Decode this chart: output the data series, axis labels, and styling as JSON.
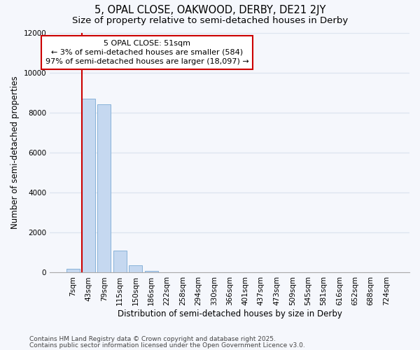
{
  "title_line1": "5, OPAL CLOSE, OAKWOOD, DERBY, DE21 2JY",
  "title_line2": "Size of property relative to semi-detached houses in Derby",
  "xlabel": "Distribution of semi-detached houses by size in Derby",
  "ylabel": "Number of semi-detached properties",
  "categories": [
    "7sqm",
    "43sqm",
    "79sqm",
    "115sqm",
    "150sqm",
    "186sqm",
    "222sqm",
    "258sqm",
    "294sqm",
    "330sqm",
    "366sqm",
    "401sqm",
    "437sqm",
    "473sqm",
    "509sqm",
    "545sqm",
    "581sqm",
    "616sqm",
    "652sqm",
    "688sqm",
    "724sqm"
  ],
  "values": [
    200,
    8700,
    8400,
    1100,
    350,
    80,
    20,
    2,
    1,
    0,
    0,
    0,
    0,
    0,
    0,
    0,
    0,
    0,
    0,
    0,
    0
  ],
  "bar_color": "#c5d8f0",
  "bar_edge_color": "#7aaad4",
  "highlight_bar_index": 1,
  "highlight_line_color": "#cc0000",
  "annotation_text": "5 OPAL CLOSE: 51sqm\n← 3% of semi-detached houses are smaller (584)\n97% of semi-detached houses are larger (18,097) →",
  "annotation_box_color": "#ffffff",
  "annotation_border_color": "#cc0000",
  "ylim": [
    0,
    12000
  ],
  "yticks": [
    0,
    2000,
    4000,
    6000,
    8000,
    10000,
    12000
  ],
  "footer_line1": "Contains HM Land Registry data © Crown copyright and database right 2025.",
  "footer_line2": "Contains public sector information licensed under the Open Government Licence v3.0.",
  "bg_color": "#f5f7fc",
  "plot_bg_color": "#f5f7fc",
  "grid_color": "#dde5f0",
  "title_fontsize": 10.5,
  "subtitle_fontsize": 9.5,
  "axis_label_fontsize": 8.5,
  "tick_fontsize": 7.5,
  "annotation_fontsize": 8,
  "footer_fontsize": 6.5
}
